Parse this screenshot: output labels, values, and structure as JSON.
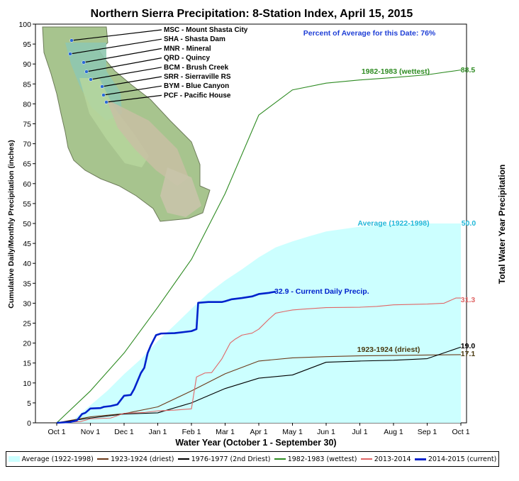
{
  "chart_data": {
    "type": "line",
    "title": "Northern Sierra Precipitation: 8-Station Index, April 15, 2015",
    "xlabel": "Water Year (October 1 - September 30)",
    "ylabel": "Cumulative Daily/Monthly Precipitation (inches)",
    "ylabel_right": "Total Water Year Precipitation",
    "annotation": "Percent of Average for this Date: 76%",
    "ylim": [
      0,
      100
    ],
    "yticks": [
      0,
      5,
      10,
      15,
      20,
      25,
      30,
      35,
      40,
      45,
      50,
      55,
      60,
      65,
      70,
      75,
      80,
      85,
      90,
      95,
      100
    ],
    "xticks": [
      "Oct 1",
      "Nov 1",
      "Dec 1",
      "Jan 1",
      "Feb 1",
      "Mar 1",
      "Apr 1",
      "May 1",
      "Jun 1",
      "Jul 1",
      "Aug 1",
      "Sep 1",
      "Oct 1"
    ],
    "grid": false,
    "legend_position": "bottom",
    "stations": [
      "MSC - Mount Shasta City",
      "SHA - Shasta Dam",
      "MNR - Mineral",
      "QRD - Quincy",
      "BCM - Brush Creek",
      "SRR - Sierraville RS",
      "BYM - Blue Canyon",
      "PCF - Pacific House"
    ],
    "series": [
      {
        "name": "Average (1922-1998)",
        "color": "#ccffff",
        "kind": "area",
        "label": "Average (1922-1998)",
        "end_label": "50.0",
        "points": [
          [
            0,
            0
          ],
          [
            0.5,
            0.8
          ],
          [
            1,
            4.4
          ],
          [
            1.5,
            8
          ],
          [
            2,
            12.2
          ],
          [
            2.5,
            16
          ],
          [
            3,
            20.5
          ],
          [
            3.5,
            24.5
          ],
          [
            4,
            28.6
          ],
          [
            4.5,
            32.5
          ],
          [
            5,
            35.7
          ],
          [
            5.5,
            38.5
          ],
          [
            6,
            41.5
          ],
          [
            6.5,
            44
          ],
          [
            7,
            45.5
          ],
          [
            7.5,
            46.8
          ],
          [
            8,
            48
          ],
          [
            9,
            49.2
          ],
          [
            10,
            49.8
          ],
          [
            11,
            50
          ],
          [
            12,
            50
          ]
        ]
      },
      {
        "name": "1923-1924 (driest)",
        "color": "#6b3a1a",
        "kind": "line",
        "label": "1923-1924 (driest)",
        "end_label": "17.1",
        "points": [
          [
            0,
            0
          ],
          [
            1,
            1.5
          ],
          [
            2,
            2.3
          ],
          [
            3,
            4
          ],
          [
            4,
            8
          ],
          [
            5,
            12.3
          ],
          [
            6,
            15.5
          ],
          [
            7,
            16.3
          ],
          [
            8,
            16.6
          ],
          [
            9,
            16.8
          ],
          [
            10,
            16.9
          ],
          [
            11,
            17
          ],
          [
            12,
            17.1
          ]
        ]
      },
      {
        "name": "1976-1977 (2nd Driest)",
        "color": "#000000",
        "kind": "line",
        "label": "",
        "end_label": "19.0",
        "points": [
          [
            0,
            0
          ],
          [
            1,
            1.2
          ],
          [
            2,
            2.2
          ],
          [
            3,
            2.5
          ],
          [
            4,
            5
          ],
          [
            5,
            8.6
          ],
          [
            6,
            11.2
          ],
          [
            7,
            12
          ],
          [
            8,
            15.2
          ],
          [
            9,
            15.5
          ],
          [
            10,
            15.7
          ],
          [
            11,
            16.1
          ],
          [
            12,
            19
          ]
        ]
      },
      {
        "name": "1982-1983 (wettest)",
        "color": "#2e8b22",
        "kind": "line",
        "label": "1982-1983 (wettest)",
        "end_label": "88.5",
        "points": [
          [
            0,
            0
          ],
          [
            1,
            8
          ],
          [
            2,
            17.5
          ],
          [
            3,
            29
          ],
          [
            4,
            41
          ],
          [
            5,
            57.5
          ],
          [
            6,
            77.2
          ],
          [
            7,
            83.5
          ],
          [
            8,
            85.2
          ],
          [
            9,
            86
          ],
          [
            10,
            86.6
          ],
          [
            11,
            87.3
          ],
          [
            12,
            88.5
          ]
        ]
      },
      {
        "name": "2013-2014",
        "color": "#e06666",
        "kind": "line",
        "label": "",
        "end_label": "31.3",
        "points": [
          [
            0,
            0
          ],
          [
            0.7,
            0.3
          ],
          [
            1,
            1
          ],
          [
            1.6,
            1.2
          ],
          [
            2,
            2.4
          ],
          [
            2.6,
            2.6
          ],
          [
            3,
            3
          ],
          [
            3.5,
            3.2
          ],
          [
            4,
            3.5
          ],
          [
            4.15,
            11.5
          ],
          [
            4.4,
            12.5
          ],
          [
            4.6,
            12.6
          ],
          [
            4.9,
            16
          ],
          [
            5.15,
            20
          ],
          [
            5.3,
            21
          ],
          [
            5.5,
            22
          ],
          [
            5.8,
            22.5
          ],
          [
            6,
            23.5
          ],
          [
            6.3,
            26
          ],
          [
            6.5,
            27.5
          ],
          [
            6.8,
            28
          ],
          [
            7,
            28.3
          ],
          [
            7.3,
            28.5
          ],
          [
            8,
            28.9
          ],
          [
            9,
            29
          ],
          [
            9.5,
            29.2
          ],
          [
            10,
            29.6
          ],
          [
            11,
            29.8
          ],
          [
            11.5,
            30
          ],
          [
            11.85,
            31.3
          ],
          [
            12,
            31.3
          ]
        ]
      },
      {
        "name": "2014-2015 (current)",
        "color": "#0022cc",
        "kind": "line",
        "label": "32.9 - Current Daily Precip.",
        "end_label": "",
        "points": [
          [
            0,
            0
          ],
          [
            0.4,
            0.2
          ],
          [
            0.6,
            0.6
          ],
          [
            0.75,
            2.2
          ],
          [
            0.85,
            2.5
          ],
          [
            1,
            3.6
          ],
          [
            1.3,
            3.7
          ],
          [
            1.4,
            4
          ],
          [
            1.6,
            4.2
          ],
          [
            1.8,
            4.6
          ],
          [
            2,
            6.8
          ],
          [
            2.2,
            7
          ],
          [
            2.3,
            8.5
          ],
          [
            2.5,
            12.5
          ],
          [
            2.6,
            13.8
          ],
          [
            2.7,
            17.5
          ],
          [
            2.8,
            19.5
          ],
          [
            2.95,
            22
          ],
          [
            3.1,
            22.4
          ],
          [
            3.5,
            22.5
          ],
          [
            4,
            23
          ],
          [
            4.15,
            23.5
          ],
          [
            4.2,
            30.1
          ],
          [
            4.5,
            30.3
          ],
          [
            4.9,
            30.3
          ],
          [
            5,
            30.5
          ],
          [
            5.2,
            31
          ],
          [
            5.5,
            31.3
          ],
          [
            5.8,
            31.7
          ],
          [
            6,
            32.3
          ],
          [
            6.3,
            32.6
          ],
          [
            6.5,
            32.9
          ]
        ]
      }
    ]
  }
}
